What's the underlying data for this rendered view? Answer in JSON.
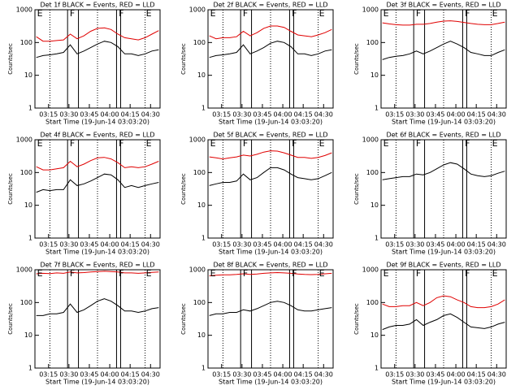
{
  "chart_data": [
    {
      "type": "line",
      "title": "Det 1f BLACK = Events, RED = LLD",
      "y_label": "Counts/sec",
      "x_label": "Start Time (19-Jun-14 03:03:20)",
      "log_y": true,
      "x": [
        "03:06",
        "03:11",
        "03:16",
        "03:21",
        "03:26",
        "03:31",
        "03:36",
        "03:41",
        "03:46",
        "03:51",
        "03:56",
        "04:01",
        "04:06",
        "04:11",
        "04:16",
        "04:21",
        "04:26",
        "04:31",
        "04:36"
      ],
      "xlim": [
        "03:05",
        "04:37"
      ],
      "xticks": [
        "03:15",
        "03:30",
        "03:45",
        "04:00",
        "04:15",
        "04:30"
      ],
      "ylim": [
        1,
        1000
      ],
      "yticks": [
        1,
        10,
        100,
        1000
      ],
      "solid_lines": [
        "03:29",
        "03:37",
        "04:05",
        "04:08"
      ],
      "dotted_lines": [
        "03:16",
        "03:51",
        "04:26"
      ],
      "annotations": [
        {
          "text": "E",
          "x": "03:06"
        },
        {
          "text": "F",
          "x": "03:30"
        },
        {
          "text": "F",
          "x": "04:06"
        },
        {
          "text": "E",
          "x": "04:26"
        }
      ],
      "series": [
        {
          "color": "#000000",
          "values": [
            35,
            40,
            42,
            45,
            50,
            85,
            45,
            55,
            70,
            90,
            110,
            100,
            75,
            45,
            45,
            40,
            45,
            55,
            60
          ]
        },
        {
          "color": "#e00000",
          "values": [
            150,
            110,
            110,
            115,
            120,
            180,
            130,
            160,
            220,
            270,
            280,
            250,
            180,
            140,
            130,
            120,
            140,
            180,
            230
          ]
        }
      ]
    },
    {
      "type": "line",
      "title": "Det 2f BLACK = Events, RED = LLD",
      "y_label": "Counts/sec",
      "x_label": "Start Time (19-Jun-14 03:03:20)",
      "log_y": true,
      "x": [
        "03:06",
        "03:11",
        "03:16",
        "03:21",
        "03:26",
        "03:31",
        "03:36",
        "03:41",
        "03:46",
        "03:51",
        "03:56",
        "04:01",
        "04:06",
        "04:11",
        "04:16",
        "04:21",
        "04:26",
        "04:31",
        "04:36"
      ],
      "xlim": [
        "03:05",
        "04:37"
      ],
      "xticks": [
        "03:15",
        "03:30",
        "03:45",
        "04:00",
        "04:15",
        "04:30"
      ],
      "ylim": [
        1,
        1000
      ],
      "yticks": [
        1,
        10,
        100,
        1000
      ],
      "solid_lines": [
        "03:29",
        "03:37",
        "04:05",
        "04:08"
      ],
      "dotted_lines": [
        "03:16",
        "03:51",
        "04:26"
      ],
      "annotations": [
        {
          "text": "E",
          "x": "03:06"
        },
        {
          "text": "F",
          "x": "03:30"
        },
        {
          "text": "F",
          "x": "04:06"
        },
        {
          "text": "E",
          "x": "04:26"
        }
      ],
      "series": [
        {
          "color": "#000000",
          "values": [
            35,
            40,
            42,
            45,
            50,
            85,
            45,
            55,
            70,
            95,
            110,
            100,
            75,
            45,
            45,
            40,
            45,
            55,
            60
          ]
        },
        {
          "color": "#e00000",
          "values": [
            160,
            130,
            140,
            140,
            150,
            220,
            160,
            200,
            270,
            320,
            320,
            290,
            220,
            170,
            160,
            150,
            170,
            200,
            250
          ]
        }
      ]
    },
    {
      "type": "line",
      "title": "Det 3f BLACK = Events, RED = LLD",
      "y_label": "Counts/sec",
      "x_label": "Start Time (19-Jun-14 03:03:20)",
      "log_y": true,
      "x": [
        "03:06",
        "03:11",
        "03:16",
        "03:21",
        "03:26",
        "03:31",
        "03:36",
        "03:41",
        "03:46",
        "03:51",
        "03:56",
        "04:01",
        "04:06",
        "04:11",
        "04:16",
        "04:21",
        "04:26",
        "04:31",
        "04:36"
      ],
      "xlim": [
        "03:05",
        "04:37"
      ],
      "xticks": [
        "03:15",
        "03:30",
        "03:45",
        "04:00",
        "04:15",
        "04:30"
      ],
      "ylim": [
        1,
        1000
      ],
      "yticks": [
        1,
        10,
        100,
        1000
      ],
      "solid_lines": [
        "03:29",
        "03:37",
        "04:05",
        "04:08"
      ],
      "dotted_lines": [
        "03:16",
        "03:51",
        "04:26"
      ],
      "annotations": [
        {
          "text": "E",
          "x": "03:06"
        },
        {
          "text": "F",
          "x": "03:30"
        },
        {
          "text": "F",
          "x": "04:06"
        },
        {
          "text": "E",
          "x": "04:26"
        }
      ],
      "series": [
        {
          "color": "#000000",
          "values": [
            30,
            35,
            38,
            40,
            45,
            55,
            45,
            55,
            70,
            90,
            110,
            90,
            70,
            50,
            45,
            40,
            40,
            50,
            60
          ]
        },
        {
          "color": "#e00000",
          "values": [
            400,
            370,
            350,
            340,
            340,
            360,
            360,
            380,
            420,
            450,
            460,
            440,
            410,
            380,
            360,
            350,
            350,
            380,
            420
          ]
        }
      ]
    },
    {
      "type": "line",
      "title": "Det 4f BLACK = Events, RED = LLD",
      "y_label": "Counts/sec",
      "x_label": "Start Time (19-Jun-14 03:03:20)",
      "log_y": true,
      "x": [
        "03:06",
        "03:11",
        "03:16",
        "03:21",
        "03:26",
        "03:31",
        "03:36",
        "03:41",
        "03:46",
        "03:51",
        "03:56",
        "04:01",
        "04:06",
        "04:11",
        "04:16",
        "04:21",
        "04:26",
        "04:31",
        "04:36"
      ],
      "xlim": [
        "03:05",
        "04:37"
      ],
      "xticks": [
        "03:15",
        "03:30",
        "03:45",
        "04:00",
        "04:15",
        "04:30"
      ],
      "ylim": [
        1,
        1000
      ],
      "yticks": [
        1,
        10,
        100,
        1000
      ],
      "solid_lines": [
        "03:29",
        "03:37",
        "04:05",
        "04:08"
      ],
      "dotted_lines": [
        "03:16",
        "03:51",
        "04:26"
      ],
      "annotations": [
        {
          "text": "E",
          "x": "03:06"
        },
        {
          "text": "F",
          "x": "03:30"
        },
        {
          "text": "F",
          "x": "04:06"
        },
        {
          "text": "E",
          "x": "04:26"
        }
      ],
      "series": [
        {
          "color": "#000000",
          "values": [
            25,
            30,
            28,
            30,
            30,
            60,
            40,
            45,
            55,
            70,
            90,
            85,
            60,
            35,
            40,
            35,
            40,
            45,
            50
          ]
        },
        {
          "color": "#e00000",
          "values": [
            150,
            120,
            120,
            130,
            140,
            220,
            150,
            180,
            230,
            280,
            290,
            260,
            200,
            140,
            150,
            140,
            150,
            180,
            220
          ]
        }
      ]
    },
    {
      "type": "line",
      "title": "Det 5f BLACK = Events, RED = LLD",
      "y_label": "Counts/sec",
      "x_label": "Start Time (19-Jun-14 03:03:20)",
      "log_y": true,
      "x": [
        "03:06",
        "03:11",
        "03:16",
        "03:21",
        "03:26",
        "03:31",
        "03:36",
        "03:41",
        "03:46",
        "03:51",
        "03:56",
        "04:01",
        "04:06",
        "04:11",
        "04:16",
        "04:21",
        "04:26",
        "04:31",
        "04:36"
      ],
      "xlim": [
        "03:05",
        "04:37"
      ],
      "xticks": [
        "03:15",
        "03:30",
        "03:45",
        "04:00",
        "04:15",
        "04:30"
      ],
      "ylim": [
        1,
        1000
      ],
      "yticks": [
        1,
        10,
        100,
        1000
      ],
      "solid_lines": [
        "03:29",
        "03:37",
        "04:05",
        "04:08"
      ],
      "dotted_lines": [
        "03:16",
        "03:51",
        "04:26"
      ],
      "annotations": [
        {
          "text": "E",
          "x": "03:06"
        },
        {
          "text": "F",
          "x": "03:30"
        },
        {
          "text": "F",
          "x": "04:06"
        },
        {
          "text": "E",
          "x": "04:26"
        }
      ],
      "series": [
        {
          "color": "#000000",
          "values": [
            40,
            45,
            50,
            50,
            55,
            90,
            60,
            70,
            100,
            140,
            140,
            120,
            90,
            70,
            65,
            60,
            65,
            80,
            100
          ]
        },
        {
          "color": "#e00000",
          "values": [
            300,
            280,
            260,
            280,
            300,
            340,
            320,
            360,
            420,
            460,
            450,
            400,
            340,
            290,
            290,
            270,
            290,
            330,
            400
          ]
        }
      ]
    },
    {
      "type": "line",
      "title": "Det 6f BLACK = Events, RED = LLD",
      "y_label": "Counts/sec",
      "x_label": "Start Time (19-Jun-14 03:03:20)",
      "log_y": true,
      "x": [
        "03:06",
        "03:11",
        "03:16",
        "03:21",
        "03:26",
        "03:31",
        "03:36",
        "03:41",
        "03:46",
        "03:51",
        "03:56",
        "04:01",
        "04:06",
        "04:11",
        "04:16",
        "04:21",
        "04:26",
        "04:31",
        "04:36"
      ],
      "xlim": [
        "03:05",
        "04:37"
      ],
      "xticks": [
        "03:15",
        "03:30",
        "03:45",
        "04:00",
        "04:15",
        "04:30"
      ],
      "ylim": [
        1,
        1000
      ],
      "yticks": [
        1,
        10,
        100,
        1000
      ],
      "solid_lines": [
        "03:29",
        "03:37",
        "04:05",
        "04:08"
      ],
      "dotted_lines": [
        "03:16",
        "03:51",
        "04:26"
      ],
      "annotations": [
        {
          "text": "E",
          "x": "03:06"
        },
        {
          "text": "F",
          "x": "03:30"
        },
        {
          "text": "F",
          "x": "04:06"
        },
        {
          "text": "E",
          "x": "04:26"
        }
      ],
      "series": [
        {
          "color": "#000000",
          "values": [
            60,
            65,
            70,
            75,
            75,
            90,
            85,
            100,
            130,
            170,
            200,
            180,
            130,
            90,
            80,
            75,
            80,
            95,
            110
          ]
        }
      ]
    },
    {
      "type": "line",
      "title": "Det 7f BLACK = Events, RED = LLD",
      "y_label": "Counts/sec",
      "x_label": "Start Time (19-Jun-14 03:03:20)",
      "log_y": true,
      "x": [
        "03:06",
        "03:11",
        "03:16",
        "03:21",
        "03:26",
        "03:31",
        "03:36",
        "03:41",
        "03:46",
        "03:51",
        "03:56",
        "04:01",
        "04:06",
        "04:11",
        "04:16",
        "04:21",
        "04:26",
        "04:31",
        "04:36"
      ],
      "xlim": [
        "03:05",
        "04:37"
      ],
      "xticks": [
        "03:15",
        "03:30",
        "03:45",
        "04:00",
        "04:15",
        "04:30"
      ],
      "ylim": [
        1,
        1000
      ],
      "yticks": [
        1,
        10,
        100,
        1000
      ],
      "solid_lines": [
        "03:29",
        "03:37",
        "04:05",
        "04:08"
      ],
      "dotted_lines": [
        "03:16",
        "03:51",
        "04:26"
      ],
      "annotations": [
        {
          "text": "E",
          "x": "03:06"
        },
        {
          "text": "F",
          "x": "03:30"
        },
        {
          "text": "F",
          "x": "04:06"
        },
        {
          "text": "E",
          "x": "04:26"
        }
      ],
      "series": [
        {
          "color": "#000000",
          "values": [
            40,
            40,
            45,
            45,
            50,
            90,
            50,
            60,
            80,
            110,
            130,
            110,
            80,
            55,
            55,
            50,
            55,
            65,
            70
          ]
        },
        {
          "color": "#e00000",
          "values": [
            750,
            780,
            760,
            800,
            780,
            850,
            800,
            820,
            850,
            880,
            900,
            880,
            850,
            800,
            800,
            780,
            800,
            830,
            850
          ]
        }
      ]
    },
    {
      "type": "line",
      "title": "Det 8f BLACK = Events, RED = LLD",
      "y_label": "Counts/sec",
      "x_label": "Start Time (19-Jun-14 03:03:20)",
      "log_y": true,
      "x": [
        "03:06",
        "03:11",
        "03:16",
        "03:21",
        "03:26",
        "03:31",
        "03:36",
        "03:41",
        "03:46",
        "03:51",
        "03:56",
        "04:01",
        "04:06",
        "04:11",
        "04:16",
        "04:21",
        "04:26",
        "04:31",
        "04:36"
      ],
      "xlim": [
        "03:05",
        "04:37"
      ],
      "xticks": [
        "03:15",
        "03:30",
        "03:45",
        "04:00",
        "04:15",
        "04:30"
      ],
      "ylim": [
        1,
        1000
      ],
      "yticks": [
        1,
        10,
        100,
        1000
      ],
      "solid_lines": [
        "03:29",
        "03:37",
        "04:05",
        "04:08"
      ],
      "dotted_lines": [
        "03:16",
        "03:51",
        "04:26"
      ],
      "annotations": [
        {
          "text": "E",
          "x": "03:06"
        },
        {
          "text": "F",
          "x": "03:30"
        },
        {
          "text": "F",
          "x": "04:06"
        },
        {
          "text": "E",
          "x": "04:26"
        }
      ],
      "series": [
        {
          "color": "#000000",
          "values": [
            40,
            45,
            45,
            50,
            50,
            60,
            55,
            65,
            80,
            100,
            110,
            100,
            80,
            60,
            55,
            55,
            60,
            65,
            70
          ]
        },
        {
          "color": "#e00000",
          "values": [
            650,
            680,
            700,
            700,
            720,
            750,
            720,
            740,
            780,
            800,
            820,
            800,
            780,
            740,
            720,
            710,
            720,
            750,
            780
          ]
        }
      ]
    },
    {
      "type": "line",
      "title": "Det 9f BLACK = Events, RED = LLD",
      "y_label": "Counts/sec",
      "x_label": "Start Time (19-Jun-14 03:03:20)",
      "log_y": true,
      "x": [
        "03:06",
        "03:11",
        "03:16",
        "03:21",
        "03:26",
        "03:31",
        "03:36",
        "03:41",
        "03:46",
        "03:51",
        "03:56",
        "04:01",
        "04:06",
        "04:11",
        "04:16",
        "04:21",
        "04:26",
        "04:31",
        "04:36"
      ],
      "xlim": [
        "03:05",
        "04:37"
      ],
      "xticks": [
        "03:15",
        "03:30",
        "03:45",
        "04:00",
        "04:15",
        "04:30"
      ],
      "ylim": [
        1,
        1000
      ],
      "yticks": [
        1,
        10,
        100,
        1000
      ],
      "solid_lines": [
        "03:29",
        "03:37",
        "04:05",
        "04:08"
      ],
      "dotted_lines": [
        "03:16",
        "03:51",
        "04:26"
      ],
      "annotations": [
        {
          "text": "E",
          "x": "03:06"
        },
        {
          "text": "F",
          "x": "03:30"
        },
        {
          "text": "F",
          "x": "04:06"
        },
        {
          "text": "E",
          "x": "04:26"
        }
      ],
      "series": [
        {
          "color": "#000000",
          "values": [
            15,
            18,
            20,
            20,
            22,
            30,
            20,
            25,
            30,
            40,
            45,
            35,
            25,
            18,
            17,
            16,
            18,
            22,
            25
          ]
        },
        {
          "color": "#e00000",
          "values": [
            90,
            75,
            75,
            80,
            80,
            100,
            80,
            100,
            140,
            160,
            150,
            120,
            100,
            75,
            70,
            70,
            75,
            90,
            120
          ]
        }
      ]
    }
  ]
}
